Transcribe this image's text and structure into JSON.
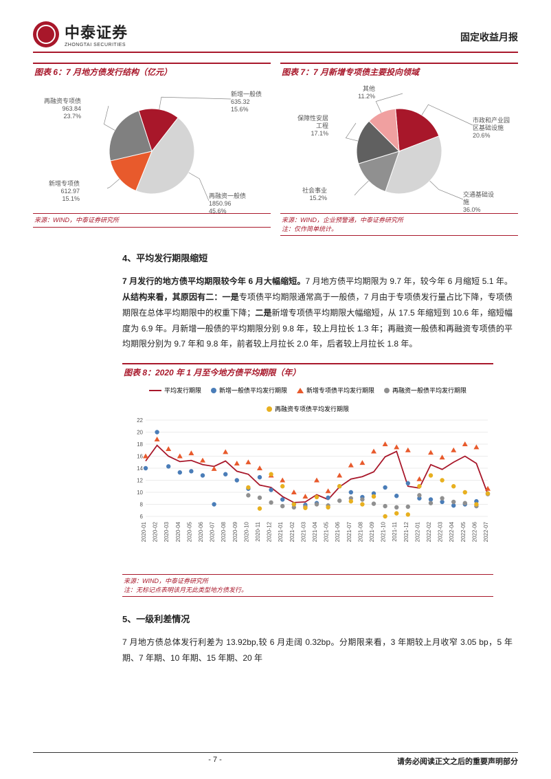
{
  "header": {
    "logo_cn": "中泰证券",
    "logo_en": "ZHONGTAI SECURITIES",
    "report_title": "固定收益月报"
  },
  "chart6": {
    "title": "图表 6：7 月地方债发行结构（亿元）",
    "type": "pie",
    "slices": [
      {
        "label": "新增一般债",
        "value": "635.32",
        "pct": "15.6%",
        "color": "#a8172a",
        "angle_start": -18,
        "angle_end": 38
      },
      {
        "label": "再融资一般债",
        "value": "1850.96",
        "pct": "45.6%",
        "color": "#d5d5d5",
        "angle_start": 38,
        "angle_end": 202
      },
      {
        "label": "新增专项债",
        "value": "612.97",
        "pct": "15.1%",
        "color": "#e85a2c",
        "angle_start": 202,
        "angle_end": 257
      },
      {
        "label": "再融资专项债",
        "value": "963.84",
        "pct": "23.7%",
        "color": "#808080",
        "angle_start": 257,
        "angle_end": 342
      }
    ],
    "source": "来源：WIND，中泰证券研究所"
  },
  "chart7": {
    "title": "图表 7：7 月新增专项债主要投向领域",
    "type": "pie",
    "slices": [
      {
        "label": "市政和产业园\n区基础设施",
        "pct": "20.6%",
        "color": "#a8172a",
        "angle_start": -5,
        "angle_end": 69
      },
      {
        "label": "交通基础设\n施",
        "pct": "36.0%",
        "color": "#d5d5d5",
        "angle_start": 69,
        "angle_end": 199
      },
      {
        "label": "社会事业",
        "pct": "15.2%",
        "color": "#909090",
        "angle_start": 199,
        "angle_end": 253
      },
      {
        "label": "保障性安居\n工程",
        "pct": "17.1%",
        "color": "#606060",
        "angle_start": 253,
        "angle_end": 315
      },
      {
        "label": "其他",
        "pct": "11.2%",
        "color": "#f0a0a0",
        "angle_start": 315,
        "angle_end": 355
      }
    ],
    "source": "来源：WIND，企业预警通，中泰证券研究所",
    "note": "注：仅作简单统计。"
  },
  "section4": {
    "heading": "4、平均发行期限缩短",
    "para": "7 月发行的地方债平均期限较今年 6 月大幅缩短。7 月地方债平均期限为 9.7 年，较今年 6 月缩短 5.1 年。从结构来看，其原因有二：一是专项债平均期限通常高于一般债，7 月由于专项债发行量占比下降，专项债期限在总体平均期限中的权重下降；二是新增专项债平均期限大幅缩短，从 17.5 年缩短到 10.6 年，缩短幅度为 6.9 年。月新增一般债的平均期限分别 9.8 年，较上月拉长 1.3 年；再融资一般债和再融资专项债的平均期限分别为 9.7 年和 9.8 年，前者较上月拉长 2.0 年，后者较上月拉长 1.8 年。"
  },
  "chart8": {
    "title": "图表 8：2020 年 1 月至今地方债平均期限（年）",
    "type": "scatter-line",
    "legend": [
      {
        "label": "平均发行期限",
        "style": "line",
        "color": "#a8172a"
      },
      {
        "label": "新增一般债平均发行期限",
        "style": "dot",
        "color": "#4a7db8"
      },
      {
        "label": "新增专项债平均发行期限",
        "style": "triangle",
        "color": "#e85a2c"
      },
      {
        "label": "再融资一般债平均发行期限",
        "style": "dot",
        "color": "#909090"
      },
      {
        "label": "再融资专项债平均发行期限",
        "style": "dot",
        "color": "#e8b020"
      }
    ],
    "ylim": [
      6,
      22
    ],
    "ytick_step": 2,
    "x_labels": [
      "2020-01",
      "2020-02",
      "2020-03",
      "2020-04",
      "2020-05",
      "2020-06",
      "2020-07",
      "2020-08",
      "2020-09",
      "2020-10",
      "2020-11",
      "2020-12",
      "2021-01",
      "2021-02",
      "2021-03",
      "2021-04",
      "2021-05",
      "2021-06",
      "2021-07",
      "2021-08",
      "2021-09",
      "2021-10",
      "2021-11",
      "2021-12",
      "2022-01",
      "2022-02",
      "2022-03",
      "2022-04",
      "2022-05",
      "2022-06",
      "2022-07"
    ],
    "line_avg": [
      15.2,
      17.8,
      16.0,
      15.1,
      15.3,
      14.6,
      14.3,
      15.2,
      13.5,
      13.0,
      11.2,
      10.8,
      9.3,
      8.3,
      8.4,
      9.6,
      8.8,
      10.9,
      12.2,
      12.6,
      13.4,
      15.9,
      16.8,
      11.0,
      10.7,
      14.6,
      13.8,
      15.0,
      16.0,
      14.8,
      9.7
    ],
    "pts_blue": [
      14.0,
      20.0,
      14.3,
      13.3,
      13.5,
      12.8,
      8.0,
      13.0,
      12.0,
      10.6,
      12.5,
      10.4,
      8.8,
      8.0,
      7.9,
      8.2,
      9.1,
      11.0,
      10.0,
      9.2,
      9.8,
      10.8,
      9.4,
      11.5,
      9.0,
      8.8,
      8.4,
      7.8,
      8.0,
      8.5,
      9.8
    ],
    "pts_orange_tri": [
      16.0,
      18.8,
      17.2,
      16.0,
      16.5,
      15.3,
      13.9,
      16.7,
      14.8,
      15.0,
      14.0,
      12.8,
      12.0,
      10.0,
      9.3,
      12.0,
      10.2,
      12.8,
      14.5,
      14.9,
      16.8,
      18.0,
      17.5,
      17.0,
      12.2,
      16.6,
      15.8,
      17.0,
      18.0,
      17.5,
      10.6
    ],
    "pts_grey": [
      null,
      null,
      null,
      null,
      null,
      null,
      null,
      null,
      null,
      9.5,
      9.1,
      8.3,
      7.7,
      7.5,
      7.6,
      8.0,
      7.8,
      8.6,
      9.0,
      8.8,
      8.1,
      7.7,
      7.5,
      7.6,
      9.5,
      8.2,
      9.0,
      8.4,
      8.2,
      7.7,
      9.7
    ],
    "pts_yellow": [
      null,
      null,
      null,
      null,
      null,
      null,
      null,
      null,
      null,
      10.8,
      7.3,
      13.0,
      11.0,
      8.0,
      7.4,
      9.2,
      7.5,
      11.0,
      8.5,
      8.0,
      9.3,
      6.0,
      6.5,
      6.3,
      11.0,
      12.8,
      12.0,
      11.0,
      10.0,
      8.0,
      9.8
    ],
    "grid_color": "#d8d8d8",
    "background_color": "#ffffff",
    "axis_fontsize": 8,
    "source": "来源：WIND，中泰证券研究所",
    "note": "注：无标记点表明该月无此类型地方债发行。"
  },
  "section5": {
    "heading": "5、一级利差情况",
    "para": "7 月地方债总体发行利差为 13.92bp,较 6 月走阔 0.32bp。分期限来看，3 年期较上月收窄 3.05 bp，5 年期、7 年期、10 年期、15 年期、20 年"
  },
  "footer": {
    "page": "- 7 -",
    "disclaimer": "请务必阅读正文之后的重要声明部分"
  }
}
